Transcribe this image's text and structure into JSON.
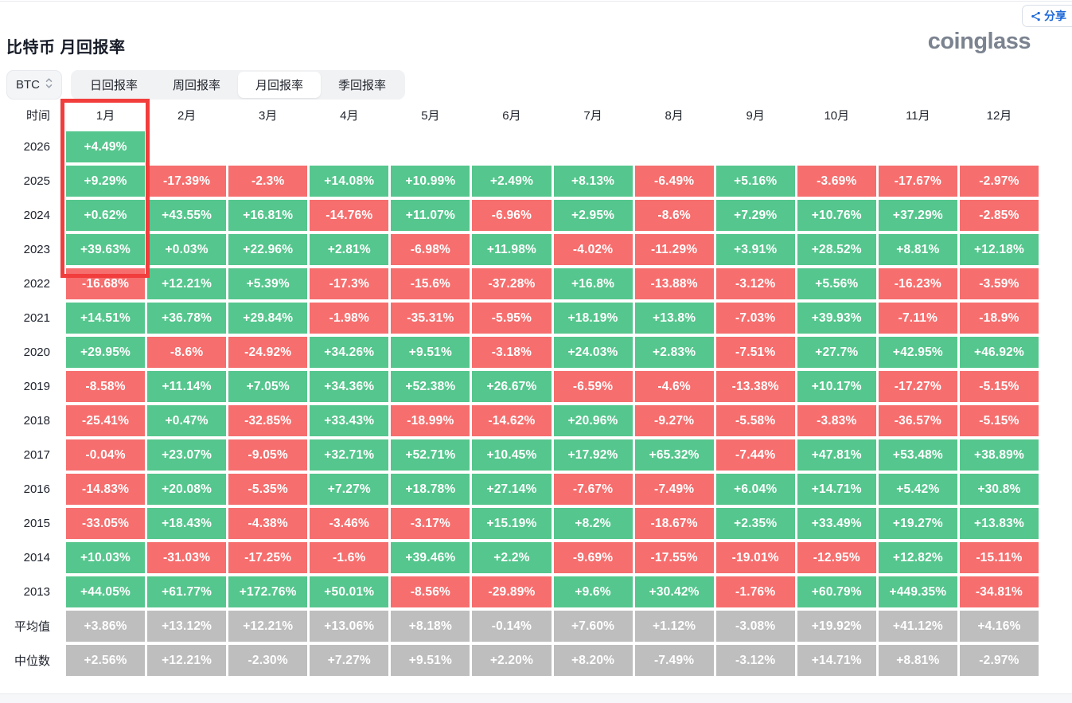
{
  "header": {
    "title": "比特币 月回报率",
    "logo": "coinglass",
    "share_label": "分享",
    "coin": "BTC"
  },
  "tabs": [
    {
      "name": "tab-daily-returns",
      "label": "日回报率",
      "active": false
    },
    {
      "name": "tab-weekly-returns",
      "label": "周回报率",
      "active": false
    },
    {
      "name": "tab-monthly-returns",
      "label": "月回报率",
      "active": true
    },
    {
      "name": "tab-quarterly-returns",
      "label": "季回报率",
      "active": false
    }
  ],
  "table": {
    "corner_label": "时间",
    "months": [
      "1月",
      "2月",
      "3月",
      "4月",
      "5月",
      "6月",
      "7月",
      "8月",
      "9月",
      "10月",
      "11月",
      "12月"
    ],
    "rows": [
      {
        "label": "2026",
        "type": "year",
        "values": [
          "+4.49%",
          "",
          "",
          "",
          "",
          "",
          "",
          "",
          "",
          "",
          "",
          ""
        ]
      },
      {
        "label": "2025",
        "type": "year",
        "values": [
          "+9.29%",
          "-17.39%",
          "-2.3%",
          "+14.08%",
          "+10.99%",
          "+2.49%",
          "+8.13%",
          "-6.49%",
          "+5.16%",
          "-3.69%",
          "-17.67%",
          "-2.97%"
        ]
      },
      {
        "label": "2024",
        "type": "year",
        "values": [
          "+0.62%",
          "+43.55%",
          "+16.81%",
          "-14.76%",
          "+11.07%",
          "-6.96%",
          "+2.95%",
          "-8.6%",
          "+7.29%",
          "+10.76%",
          "+37.29%",
          "-2.85%"
        ]
      },
      {
        "label": "2023",
        "type": "year",
        "values": [
          "+39.63%",
          "+0.03%",
          "+22.96%",
          "+2.81%",
          "-6.98%",
          "+11.98%",
          "-4.02%",
          "-11.29%",
          "+3.91%",
          "+28.52%",
          "+8.81%",
          "+12.18%"
        ]
      },
      {
        "label": "2022",
        "type": "year",
        "values": [
          "-16.68%",
          "+12.21%",
          "+5.39%",
          "-17.3%",
          "-15.6%",
          "-37.28%",
          "+16.8%",
          "-13.88%",
          "-3.12%",
          "+5.56%",
          "-16.23%",
          "-3.59%"
        ]
      },
      {
        "label": "2021",
        "type": "year",
        "values": [
          "+14.51%",
          "+36.78%",
          "+29.84%",
          "-1.98%",
          "-35.31%",
          "-5.95%",
          "+18.19%",
          "+13.8%",
          "-7.03%",
          "+39.93%",
          "-7.11%",
          "-18.9%"
        ]
      },
      {
        "label": "2020",
        "type": "year",
        "values": [
          "+29.95%",
          "-8.6%",
          "-24.92%",
          "+34.26%",
          "+9.51%",
          "-3.18%",
          "+24.03%",
          "+2.83%",
          "-7.51%",
          "+27.7%",
          "+42.95%",
          "+46.92%"
        ]
      },
      {
        "label": "2019",
        "type": "year",
        "values": [
          "-8.58%",
          "+11.14%",
          "+7.05%",
          "+34.36%",
          "+52.38%",
          "+26.67%",
          "-6.59%",
          "-4.6%",
          "-13.38%",
          "+10.17%",
          "-17.27%",
          "-5.15%"
        ]
      },
      {
        "label": "2018",
        "type": "year",
        "values": [
          "-25.41%",
          "+0.47%",
          "-32.85%",
          "+33.43%",
          "-18.99%",
          "-14.62%",
          "+20.96%",
          "-9.27%",
          "-5.58%",
          "-3.83%",
          "-36.57%",
          "-5.15%"
        ]
      },
      {
        "label": "2017",
        "type": "year",
        "values": [
          "-0.04%",
          "+23.07%",
          "-9.05%",
          "+32.71%",
          "+52.71%",
          "+10.45%",
          "+17.92%",
          "+65.32%",
          "-7.44%",
          "+47.81%",
          "+53.48%",
          "+38.89%"
        ]
      },
      {
        "label": "2016",
        "type": "year",
        "values": [
          "-14.83%",
          "+20.08%",
          "-5.35%",
          "+7.27%",
          "+18.78%",
          "+27.14%",
          "-7.67%",
          "-7.49%",
          "+6.04%",
          "+14.71%",
          "+5.42%",
          "+30.8%"
        ]
      },
      {
        "label": "2015",
        "type": "year",
        "values": [
          "-33.05%",
          "+18.43%",
          "-4.38%",
          "-3.46%",
          "-3.17%",
          "+15.19%",
          "+8.2%",
          "-18.67%",
          "+2.35%",
          "+33.49%",
          "+19.27%",
          "+13.83%"
        ]
      },
      {
        "label": "2014",
        "type": "year",
        "values": [
          "+10.03%",
          "-31.03%",
          "-17.25%",
          "-1.6%",
          "+39.46%",
          "+2.2%",
          "-9.69%",
          "-17.55%",
          "-19.01%",
          "-12.95%",
          "+12.82%",
          "-15.11%"
        ]
      },
      {
        "label": "2013",
        "type": "year",
        "values": [
          "+44.05%",
          "+61.77%",
          "+172.76%",
          "+50.01%",
          "-8.56%",
          "-29.89%",
          "+9.6%",
          "+30.42%",
          "-1.76%",
          "+60.79%",
          "+449.35%",
          "-34.81%"
        ]
      },
      {
        "label": "平均值",
        "type": "summary",
        "values": [
          "+3.86%",
          "+13.12%",
          "+12.21%",
          "+13.06%",
          "+8.18%",
          "-0.14%",
          "+7.60%",
          "+1.12%",
          "-3.08%",
          "+19.92%",
          "+41.12%",
          "+4.16%"
        ]
      },
      {
        "label": "中位数",
        "type": "summary",
        "values": [
          "+2.56%",
          "+12.21%",
          "-2.30%",
          "+7.27%",
          "+9.51%",
          "+2.20%",
          "+8.20%",
          "-7.49%",
          "-3.12%",
          "+14.71%",
          "+8.81%",
          "-2.97%"
        ]
      }
    ]
  },
  "colors": {
    "positive_bg": "#55c68d",
    "negative_bg": "#f66e6e",
    "summary_bg": "#bebebe",
    "highlight_border": "#f23d3d",
    "share_text": "#1f6ad8",
    "logo_text": "#7b8390"
  }
}
